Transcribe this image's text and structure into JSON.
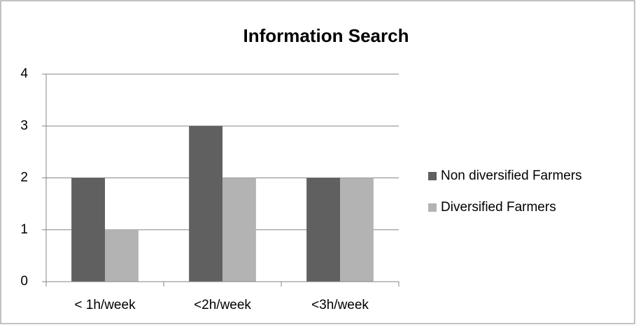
{
  "chart_data": {
    "type": "bar",
    "title": "Information Search",
    "categories": [
      "< 1h/week",
      "<2h/week",
      "<3h/week"
    ],
    "series": [
      {
        "name": "Non diversified Farmers",
        "color": "#606060",
        "values": [
          2,
          3,
          2
        ]
      },
      {
        "name": "Diversified Farmers",
        "color": "#b3b3b3",
        "values": [
          1,
          2,
          2
        ]
      }
    ],
    "ylim": [
      0,
      4
    ],
    "yticks": [
      0,
      1,
      2,
      3,
      4
    ],
    "grid": true,
    "legend": "right"
  }
}
